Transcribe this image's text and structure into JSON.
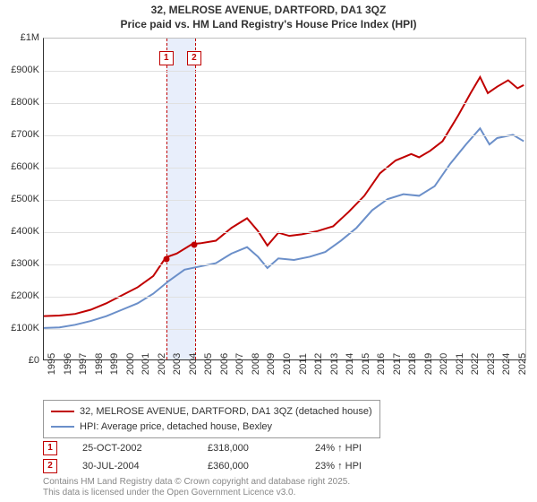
{
  "title": {
    "line1": "32, MELROSE AVENUE, DARTFORD, DA1 3QZ",
    "line2": "Price paid vs. HM Land Registry's House Price Index (HPI)"
  },
  "chart": {
    "type": "line",
    "x_min": 1995,
    "x_max": 2025.8,
    "y_min": 0,
    "y_max": 1000000,
    "y_ticks": [
      {
        "v": 0,
        "label": "£0"
      },
      {
        "v": 100000,
        "label": "£100K"
      },
      {
        "v": 200000,
        "label": "£200K"
      },
      {
        "v": 300000,
        "label": "£300K"
      },
      {
        "v": 400000,
        "label": "£400K"
      },
      {
        "v": 500000,
        "label": "£500K"
      },
      {
        "v": 600000,
        "label": "£600K"
      },
      {
        "v": 700000,
        "label": "£700K"
      },
      {
        "v": 800000,
        "label": "£800K"
      },
      {
        "v": 900000,
        "label": "£900K"
      },
      {
        "v": 1000000,
        "label": "£1M"
      }
    ],
    "x_ticks": [
      1995,
      1996,
      1997,
      1998,
      1999,
      2000,
      2001,
      2002,
      2003,
      2004,
      2005,
      2006,
      2007,
      2008,
      2009,
      2010,
      2011,
      2012,
      2013,
      2014,
      2015,
      2016,
      2017,
      2018,
      2019,
      2020,
      2021,
      2022,
      2023,
      2024,
      2025
    ],
    "grid_color": "#e0e0e0",
    "background_color": "#ffffff",
    "highlight_band": {
      "x_start": 2002.8,
      "x_end": 2004.6,
      "fill": "#e8eefb",
      "border": "#c00000"
    },
    "series": [
      {
        "name": "32, MELROSE AVENUE, DARTFORD, DA1 3QZ (detached house)",
        "color": "#c00000",
        "width": 2,
        "points": [
          [
            1995,
            135000
          ],
          [
            1996,
            137000
          ],
          [
            1997,
            142000
          ],
          [
            1998,
            155000
          ],
          [
            1999,
            175000
          ],
          [
            2000,
            200000
          ],
          [
            2001,
            225000
          ],
          [
            2002,
            260000
          ],
          [
            2002.8,
            318000
          ],
          [
            2003.5,
            330000
          ],
          [
            2004.5,
            360000
          ],
          [
            2005,
            362000
          ],
          [
            2006,
            370000
          ],
          [
            2007,
            410000
          ],
          [
            2008,
            440000
          ],
          [
            2008.7,
            400000
          ],
          [
            2009.3,
            355000
          ],
          [
            2010,
            395000
          ],
          [
            2010.7,
            385000
          ],
          [
            2011.5,
            390000
          ],
          [
            2012.5,
            400000
          ],
          [
            2013.5,
            415000
          ],
          [
            2014.5,
            460000
          ],
          [
            2015.5,
            510000
          ],
          [
            2016.5,
            580000
          ],
          [
            2017.5,
            620000
          ],
          [
            2018.5,
            640000
          ],
          [
            2019,
            630000
          ],
          [
            2019.7,
            650000
          ],
          [
            2020.5,
            680000
          ],
          [
            2021.5,
            760000
          ],
          [
            2022.3,
            830000
          ],
          [
            2022.9,
            880000
          ],
          [
            2023.4,
            830000
          ],
          [
            2024,
            850000
          ],
          [
            2024.7,
            870000
          ],
          [
            2025.3,
            845000
          ],
          [
            2025.7,
            855000
          ]
        ]
      },
      {
        "name": "HPI: Average price, detached house, Bexley",
        "color": "#6b8fc9",
        "width": 2,
        "points": [
          [
            1995,
            98000
          ],
          [
            1996,
            100000
          ],
          [
            1997,
            108000
          ],
          [
            1998,
            120000
          ],
          [
            1999,
            135000
          ],
          [
            2000,
            155000
          ],
          [
            2001,
            175000
          ],
          [
            2002,
            205000
          ],
          [
            2003,
            245000
          ],
          [
            2004,
            280000
          ],
          [
            2005,
            290000
          ],
          [
            2006,
            300000
          ],
          [
            2007,
            330000
          ],
          [
            2008,
            350000
          ],
          [
            2008.7,
            320000
          ],
          [
            2009.3,
            285000
          ],
          [
            2010,
            315000
          ],
          [
            2011,
            310000
          ],
          [
            2012,
            320000
          ],
          [
            2013,
            335000
          ],
          [
            2014,
            370000
          ],
          [
            2015,
            410000
          ],
          [
            2016,
            465000
          ],
          [
            2017,
            500000
          ],
          [
            2018,
            515000
          ],
          [
            2019,
            510000
          ],
          [
            2020,
            540000
          ],
          [
            2021,
            610000
          ],
          [
            2022,
            670000
          ],
          [
            2022.9,
            720000
          ],
          [
            2023.5,
            670000
          ],
          [
            2024,
            690000
          ],
          [
            2025,
            700000
          ],
          [
            2025.7,
            680000
          ]
        ]
      }
    ],
    "sale_markers": [
      {
        "n": "1",
        "x": 2002.8,
        "y": 318000
      },
      {
        "n": "2",
        "x": 2004.58,
        "y": 360000
      }
    ],
    "marker_box_top_offset": 14
  },
  "legend": {
    "items": [
      {
        "color": "#c00000",
        "label": "32, MELROSE AVENUE, DARTFORD, DA1 3QZ (detached house)"
      },
      {
        "color": "#6b8fc9",
        "label": "HPI: Average price, detached house, Bexley"
      }
    ]
  },
  "sales": [
    {
      "n": "1",
      "date": "25-OCT-2002",
      "price": "£318,000",
      "delta": "24% ↑ HPI"
    },
    {
      "n": "2",
      "date": "30-JUL-2004",
      "price": "£360,000",
      "delta": "23% ↑ HPI"
    }
  ],
  "footnote": {
    "line1": "Contains HM Land Registry data © Crown copyright and database right 2025.",
    "line2": "This data is licensed under the Open Government Licence v3.0."
  }
}
